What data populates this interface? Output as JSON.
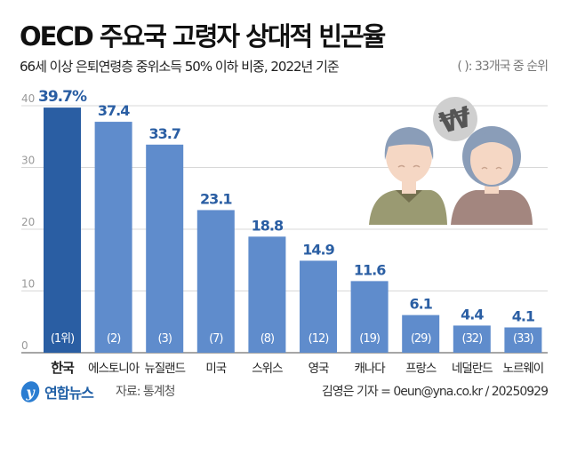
{
  "title": "OECD 주요국 고령자 상대적 빈곤율",
  "subtitle": "66세 이상 은퇴연령층 중위소득 50% 이하 비중, 2022년 기준",
  "note": "( ): 33개국 중 순위",
  "chart_data": {
    "type": "bar",
    "categories": [
      "한국",
      "에스토니아",
      "뉴질랜드",
      "미국",
      "스위스",
      "영국",
      "캐나다",
      "프랑스",
      "네덜란드",
      "노르웨이"
    ],
    "values": [
      39.7,
      37.4,
      33.7,
      23.1,
      18.8,
      14.9,
      11.6,
      6.1,
      4.4,
      4.1
    ],
    "value_labels": [
      "39.7%",
      "37.4",
      "33.7",
      "23.1",
      "18.8",
      "14.9",
      "11.6",
      "6.1",
      "4.4",
      "4.1"
    ],
    "ranks": [
      "(1위)",
      "(2)",
      "(3)",
      "(7)",
      "(8)",
      "(12)",
      "(19)",
      "(29)",
      "(32)",
      "(33)"
    ],
    "yticks": [
      "0",
      "10",
      "20",
      "30",
      "40"
    ],
    "ylim": [
      0,
      40
    ],
    "grid": true,
    "colors": {
      "highlight": "#2a5ea3",
      "bar": "#5f8ccc",
      "value_text": "#2a5ea3",
      "rank_text": "#ffffff"
    }
  },
  "illustration": {
    "icon": "elderly-couple-won-icon",
    "symbol": "₩"
  },
  "footer": {
    "logo": "연합뉴스",
    "source": "자료: 통계청",
    "credit": "김영은 기자 = 0eun@yna.co.kr / 20250929"
  }
}
